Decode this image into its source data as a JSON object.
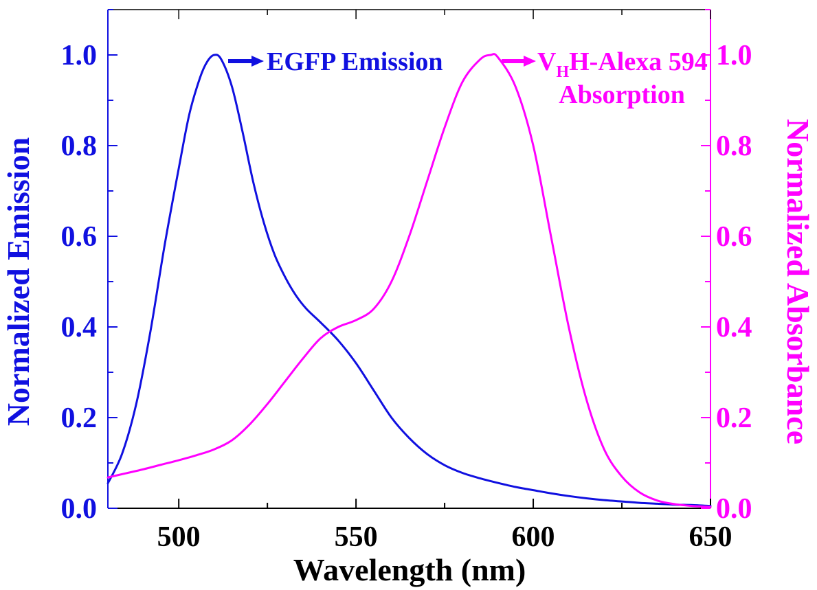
{
  "chart_data": {
    "type": "line",
    "xlabel": "Wavelength (nm)",
    "ylabel_left": "Normalized Emission",
    "ylabel_right": "Normalized Absorbance",
    "xlim": [
      480,
      650
    ],
    "ylim": [
      0,
      1.1
    ],
    "x_ticks": [
      "500",
      "550",
      "600",
      "650"
    ],
    "y_ticks": [
      "0.0",
      "0.2",
      "0.4",
      "0.6",
      "0.8",
      "1.0"
    ],
    "grid": false,
    "series": [
      {
        "name": "EGFP Emission",
        "axis": "left",
        "color": "#1010E0",
        "x": [
          480,
          484,
          488,
          492,
          496,
          500,
          503,
          506,
          508,
          510,
          512,
          515,
          518,
          521,
          524,
          527,
          530,
          533,
          536,
          540,
          545,
          550,
          555,
          560,
          565,
          570,
          575,
          580,
          585,
          590,
          595,
          600,
          605,
          610,
          615,
          620,
          625,
          630,
          635,
          640,
          645,
          650
        ],
        "values": [
          0.055,
          0.12,
          0.23,
          0.39,
          0.58,
          0.75,
          0.87,
          0.95,
          0.985,
          1.0,
          0.99,
          0.93,
          0.83,
          0.72,
          0.63,
          0.56,
          0.51,
          0.47,
          0.44,
          0.41,
          0.37,
          0.32,
          0.26,
          0.2,
          0.155,
          0.12,
          0.095,
          0.078,
          0.066,
          0.056,
          0.047,
          0.04,
          0.033,
          0.027,
          0.022,
          0.018,
          0.015,
          0.012,
          0.01,
          0.008,
          0.007,
          0.005
        ]
      },
      {
        "name": "VHH-Alexa 594 Absorption",
        "axis": "right",
        "color": "#FF00FF",
        "x": [
          480,
          485,
          490,
          495,
          500,
          505,
          510,
          515,
          520,
          525,
          530,
          535,
          540,
          545,
          550,
          555,
          560,
          565,
          570,
          575,
          580,
          585,
          588,
          590,
          595,
          600,
          605,
          610,
          615,
          620,
          625,
          630,
          635,
          640,
          645,
          650
        ],
        "values": [
          0.068,
          0.077,
          0.086,
          0.096,
          0.106,
          0.117,
          0.13,
          0.15,
          0.185,
          0.23,
          0.28,
          0.33,
          0.375,
          0.4,
          0.415,
          0.44,
          0.5,
          0.6,
          0.72,
          0.84,
          0.94,
          0.99,
          1.0,
          0.995,
          0.93,
          0.8,
          0.6,
          0.4,
          0.24,
          0.13,
          0.07,
          0.035,
          0.017,
          0.009,
          0.005,
          0.003
        ]
      }
    ],
    "annotations": {
      "emission": {
        "label": "EGFP Emission"
      },
      "absorption": {
        "label_main": "V",
        "label_sub": "H",
        "label_rest": "H-Alexa 594",
        "label_line2": "Absorption"
      }
    },
    "colors": {
      "left_axis": "#1010E0",
      "right_axis": "#FF00FF",
      "frame": "#000000"
    }
  }
}
